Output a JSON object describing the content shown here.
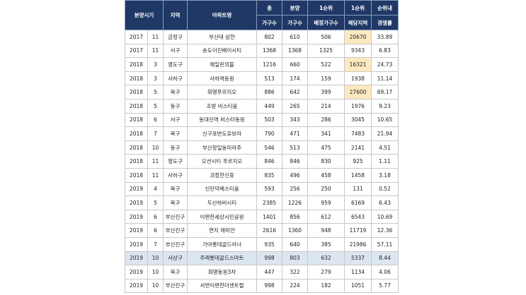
{
  "header": {
    "top": [
      "분양시기",
      "지역",
      "아파트명",
      "총",
      "분양",
      "1순위",
      "1순위",
      "순위내"
    ],
    "bottom": [
      "가구수",
      "가구수",
      "배정가구수",
      "해당지역",
      "경쟁률"
    ]
  },
  "rows": [
    [
      "2017",
      "11",
      "금정구",
      "부산대 삼한",
      "802",
      "610",
      "506",
      "20670",
      "33.89"
    ],
    [
      "2017",
      "11",
      "서구",
      "송도이진베이시티",
      "1368",
      "1368",
      "1325",
      "9343",
      "6.83"
    ],
    [
      "2018",
      "3",
      "영도구",
      "에일린의뜰",
      "1216",
      "660",
      "522",
      "16321",
      "24.73"
    ],
    [
      "2018",
      "3",
      "사하구",
      "사하역동원",
      "513",
      "174",
      "159",
      "1938",
      "11.14"
    ],
    [
      "2018",
      "5",
      "북구",
      "화명푸르지오",
      "886",
      "642",
      "399",
      "27600",
      "69.17"
    ],
    [
      "2018",
      "5",
      "동구",
      "조방 비스티움",
      "449",
      "265",
      "214",
      "1976",
      "9.23"
    ],
    [
      "2018",
      "6",
      "서구",
      "동대신역 비스타동원",
      "503",
      "343",
      "286",
      "3045",
      "10.65"
    ],
    [
      "2018",
      "7",
      "북구",
      "신구포반도유보라",
      "790",
      "471",
      "341",
      "7483",
      "21.94"
    ],
    [
      "2018",
      "10",
      "동구",
      "부산항일동미라주",
      "546",
      "513",
      "475",
      "2141",
      "4.51"
    ],
    [
      "2018",
      "11",
      "영도구",
      "오션시티 푸르지오",
      "846",
      "846",
      "830",
      "925",
      "1.11"
    ],
    [
      "2018",
      "11",
      "사하구",
      "괴정한신휴",
      "835",
      "496",
      "458",
      "1458",
      "3.18"
    ],
    [
      "2019",
      "4",
      "북구",
      "신만덕베스티움",
      "593",
      "256",
      "250",
      "131",
      "0.52"
    ],
    [
      "2019",
      "5",
      "북구",
      "두산하버시티",
      "2385",
      "1226",
      "959",
      "6169",
      "6.43"
    ],
    [
      "2019",
      "6",
      "부산진구",
      "이편한세상시민공원",
      "1401",
      "856",
      "612",
      "6543",
      "10.69"
    ],
    [
      "2019",
      "6",
      "부산진구",
      "연지 래미안",
      "2616",
      "1360",
      "948",
      "11719",
      "12.36"
    ],
    [
      "2019",
      "7",
      "부산진구",
      "가야롯데골드아너",
      "935",
      "640",
      "385",
      "21986",
      "57.11"
    ],
    [
      "2019",
      "10",
      "사상구",
      "주례롯데골드스마트",
      "998",
      "803",
      "632",
      "5337",
      "8.44"
    ],
    [
      "2019",
      "10",
      "북구",
      "화명동원3차",
      "447",
      "322",
      "279",
      "1134",
      "4.06"
    ],
    [
      "2019",
      "10",
      "부산진구",
      "서면이편한더센트럴",
      "998",
      "224",
      "182",
      "1051",
      "5.77"
    ]
  ]
}
